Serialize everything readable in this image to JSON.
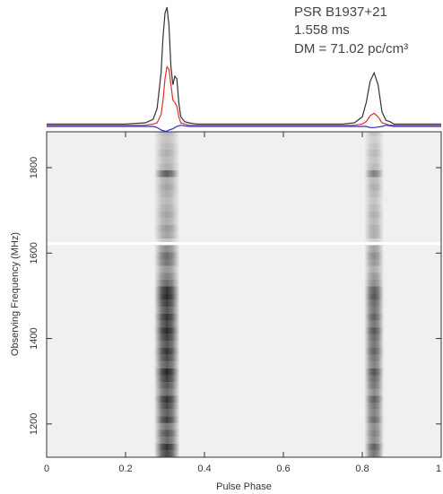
{
  "chart_data": [
    {
      "type": "line",
      "annotations": [
        "PSR B1937+21",
        "1.558 ms",
        "DM = 71.02 pc/cm³"
      ],
      "xlim": [
        0,
        1
      ],
      "ylim": [
        -0.05,
        1.0
      ],
      "x": [
        0,
        0.05,
        0.1,
        0.15,
        0.2,
        0.25,
        0.27,
        0.28,
        0.29,
        0.295,
        0.3,
        0.305,
        0.31,
        0.315,
        0.32,
        0.325,
        0.33,
        0.335,
        0.34,
        0.35,
        0.36,
        0.38,
        0.4,
        0.5,
        0.6,
        0.7,
        0.75,
        0.78,
        0.8,
        0.81,
        0.82,
        0.83,
        0.84,
        0.85,
        0.86,
        0.87,
        0.88,
        0.9,
        0.95,
        1
      ],
      "series": [
        {
          "color": "#333333",
          "values": [
            0.02,
            0.02,
            0.02,
            0.02,
            0.02,
            0.03,
            0.06,
            0.15,
            0.45,
            0.75,
            0.95,
            1.0,
            0.85,
            0.5,
            0.35,
            0.42,
            0.4,
            0.2,
            0.08,
            0.04,
            0.03,
            0.02,
            0.02,
            0.02,
            0.02,
            0.02,
            0.02,
            0.03,
            0.08,
            0.2,
            0.38,
            0.45,
            0.35,
            0.12,
            0.05,
            0.04,
            0.02,
            0.02,
            0.02,
            0.02
          ]
        },
        {
          "color": "#e0302c",
          "values": [
            0.01,
            0.01,
            0.01,
            0.01,
            0.01,
            0.01,
            0.02,
            0.03,
            0.1,
            0.22,
            0.4,
            0.5,
            0.48,
            0.35,
            0.22,
            0.2,
            0.17,
            0.08,
            0.03,
            0.02,
            0.01,
            0.01,
            0.01,
            0.01,
            0.01,
            0.01,
            0.01,
            0.01,
            0.02,
            0.04,
            0.09,
            0.11,
            0.08,
            0.03,
            0.02,
            0.01,
            0.01,
            0.01,
            0.01,
            0.01
          ]
        },
        {
          "color": "#2a2ad0",
          "values": [
            0,
            0,
            0,
            0,
            0,
            0,
            0,
            -0.01,
            -0.03,
            -0.035,
            -0.04,
            -0.04,
            -0.03,
            -0.025,
            -0.02,
            -0.01,
            0,
            0.005,
            0.01,
            0.005,
            0,
            0,
            0,
            0,
            0,
            0,
            0,
            0,
            0,
            0,
            -0.01,
            -0.01,
            -0.005,
            0,
            0.01,
            0.005,
            0,
            0,
            0,
            0
          ]
        }
      ]
    },
    {
      "type": "waterfall",
      "x_label": "Pulse Phase",
      "y_label": "Observing Frequency (MHz)",
      "xlim": [
        0,
        1
      ],
      "xticks": [
        0,
        0.2,
        0.4,
        0.6,
        0.8,
        1
      ],
      "ylim": [
        1122,
        1884
      ],
      "yticks": [
        1200,
        1400,
        1600,
        1800
      ],
      "channels": [
        1130,
        1146,
        1162,
        1178,
        1194,
        1210,
        1226,
        1242,
        1258,
        1274,
        1290,
        1306,
        1322,
        1338,
        1354,
        1370,
        1386,
        1402,
        1418,
        1434,
        1450,
        1466,
        1482,
        1498,
        1514,
        1530,
        1546,
        1562,
        1578,
        1594,
        1610,
        1626,
        1642,
        1658,
        1674,
        1690,
        1706,
        1722,
        1738,
        1754,
        1770,
        1786,
        1802,
        1818,
        1834,
        1850,
        1866,
        1882
      ],
      "pulses": [
        {
          "phase": 0.305,
          "values": [
            0.75,
            0.85,
            0.6,
            0.7,
            0.55,
            0.8,
            0.65,
            0.75,
            0.85,
            0.6,
            0.7,
            0.8,
            0.9,
            0.65,
            0.75,
            0.85,
            0.7,
            0.8,
            0.9,
            0.75,
            0.85,
            0.7,
            0.8,
            0.9,
            0.85,
            0.6,
            0.5,
            0.4,
            0.55,
            0.6,
            0.45,
            0.2,
            0.35,
            0.4,
            0.3,
            0.35,
            0.3,
            0.25,
            0.3,
            0.35,
            0.3,
            0.65,
            0.3,
            0.25,
            0.3,
            0.25,
            0.2,
            0.25
          ]
        },
        {
          "phase": 0.83,
          "values": [
            0.55,
            0.65,
            0.45,
            0.5,
            0.45,
            0.6,
            0.5,
            0.55,
            0.65,
            0.45,
            0.55,
            0.6,
            0.7,
            0.5,
            0.55,
            0.65,
            0.55,
            0.6,
            0.7,
            0.55,
            0.65,
            0.55,
            0.6,
            0.7,
            0.65,
            0.45,
            0.4,
            0.3,
            0.4,
            0.45,
            0.35,
            0.15,
            0.3,
            0.3,
            0.25,
            0.3,
            0.25,
            0.2,
            0.25,
            0.3,
            0.25,
            0.5,
            0.25,
            0.2,
            0.25,
            0.2,
            0.15,
            0.2
          ]
        }
      ]
    }
  ]
}
